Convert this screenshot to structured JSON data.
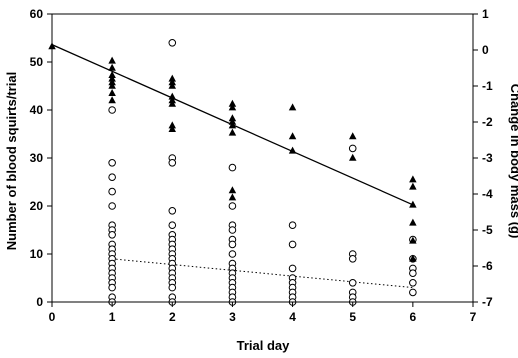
{
  "chart_data": {
    "type": "scatter",
    "title": "",
    "xlabel": "Trial day",
    "ylabel_left": "Number of blood squirts/trial",
    "ylabel_right": "Change in body mass (g)",
    "xlim": [
      0,
      7
    ],
    "ylim_left": [
      0,
      60
    ],
    "ylim_right": [
      -7,
      1
    ],
    "x_ticks": [
      "0",
      "1",
      "2",
      "3",
      "4",
      "5",
      "6",
      "7"
    ],
    "y_left_ticks": [
      "0",
      "10",
      "20",
      "30",
      "40",
      "50",
      "60"
    ],
    "y_right_ticks": [
      "-7",
      "-6",
      "-5",
      "-4",
      "-3",
      "-2",
      "-1",
      "0",
      "1"
    ],
    "grid": false,
    "legend": "none",
    "series": [
      {
        "axis": "left",
        "marker": "open-circle",
        "points": [
          [
            1,
            40
          ],
          [
            1,
            29
          ],
          [
            1,
            26
          ],
          [
            1,
            23
          ],
          [
            1,
            20
          ],
          [
            1,
            16
          ],
          [
            1,
            15
          ],
          [
            1,
            14
          ],
          [
            1,
            12
          ],
          [
            1,
            11
          ],
          [
            1,
            10
          ],
          [
            1,
            9
          ],
          [
            1,
            8
          ],
          [
            1,
            7
          ],
          [
            1,
            6
          ],
          [
            1,
            5
          ],
          [
            1,
            4
          ],
          [
            1,
            3
          ],
          [
            1,
            1
          ],
          [
            1,
            0
          ],
          [
            2,
            54
          ],
          [
            2,
            30
          ],
          [
            2,
            29
          ],
          [
            2,
            19
          ],
          [
            2,
            16
          ],
          [
            2,
            14
          ],
          [
            2,
            13
          ],
          [
            2,
            12
          ],
          [
            2,
            11
          ],
          [
            2,
            10
          ],
          [
            2,
            9
          ],
          [
            2,
            8
          ],
          [
            2,
            7
          ],
          [
            2,
            6
          ],
          [
            2,
            5
          ],
          [
            2,
            4
          ],
          [
            2,
            3
          ],
          [
            2,
            1
          ],
          [
            2,
            0
          ],
          [
            3,
            28
          ],
          [
            3,
            20
          ],
          [
            3,
            16
          ],
          [
            3,
            15
          ],
          [
            3,
            13
          ],
          [
            3,
            12
          ],
          [
            3,
            10
          ],
          [
            3,
            8
          ],
          [
            3,
            7
          ],
          [
            3,
            6
          ],
          [
            3,
            5
          ],
          [
            3,
            4
          ],
          [
            3,
            3
          ],
          [
            3,
            2
          ],
          [
            3,
            1
          ],
          [
            3,
            0
          ],
          [
            4,
            16
          ],
          [
            4,
            12
          ],
          [
            4,
            7
          ],
          [
            4,
            5
          ],
          [
            4,
            4
          ],
          [
            4,
            3
          ],
          [
            4,
            2
          ],
          [
            4,
            1
          ],
          [
            4,
            0
          ],
          [
            5,
            32
          ],
          [
            5,
            10
          ],
          [
            5,
            9
          ],
          [
            5,
            4
          ],
          [
            5,
            2
          ],
          [
            5,
            1
          ],
          [
            5,
            0
          ],
          [
            6,
            13
          ],
          [
            6,
            9
          ],
          [
            6,
            7
          ],
          [
            6,
            6
          ],
          [
            6,
            4
          ],
          [
            6,
            2
          ]
        ]
      },
      {
        "axis": "right",
        "marker": "filled-triangle",
        "points": [
          [
            0,
            0.1
          ],
          [
            1,
            -0.3
          ],
          [
            1,
            -0.5
          ],
          [
            1,
            -0.7
          ],
          [
            1,
            -0.8
          ],
          [
            1,
            -0.9
          ],
          [
            1,
            -1.0
          ],
          [
            1,
            -1.2
          ],
          [
            1,
            -1.4
          ],
          [
            2,
            -0.8
          ],
          [
            2,
            -0.9
          ],
          [
            2,
            -1.0
          ],
          [
            2,
            -1.3
          ],
          [
            2,
            -1.4
          ],
          [
            2,
            -1.5
          ],
          [
            2,
            -2.1
          ],
          [
            2,
            -2.2
          ],
          [
            3,
            -1.5
          ],
          [
            3,
            -1.6
          ],
          [
            3,
            -1.9
          ],
          [
            3,
            -2.0
          ],
          [
            3,
            -2.1
          ],
          [
            3,
            -2.3
          ],
          [
            3,
            -3.9
          ],
          [
            3,
            -4.1
          ],
          [
            4,
            -1.6
          ],
          [
            4,
            -2.4
          ],
          [
            4,
            -2.8
          ],
          [
            5,
            -2.4
          ],
          [
            5,
            -3.0
          ],
          [
            6,
            -3.6
          ],
          [
            6,
            -3.8
          ],
          [
            6,
            -4.3
          ],
          [
            6,
            -4.8
          ],
          [
            6,
            -5.3
          ],
          [
            6,
            -5.8
          ]
        ]
      }
    ],
    "fit_lines": [
      {
        "axis": "right",
        "style": "solid",
        "x": [
          0,
          6
        ],
        "y": [
          0.15,
          -4.3
        ]
      },
      {
        "axis": "left",
        "style": "dotted",
        "x": [
          1,
          6
        ],
        "y": [
          9,
          3
        ]
      }
    ]
  }
}
